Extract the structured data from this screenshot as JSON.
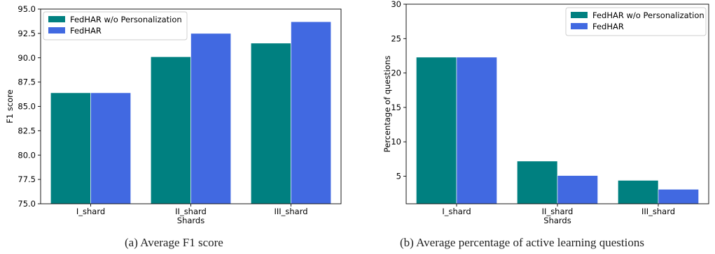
{
  "captions": {
    "a": "(a) Average F1 score",
    "b": "(b) Average percentage of active learning questions"
  },
  "colors": {
    "series_1": "#008080",
    "series_2": "#4169E1",
    "axis": "#000000"
  },
  "chart_data": [
    {
      "type": "bar",
      "title": "",
      "xlabel": "Shards",
      "ylabel": "F1 score",
      "categories": [
        "I_shard",
        "II_shard",
        "III_shard"
      ],
      "ylim": [
        75.0,
        95.0
      ],
      "yticks": [
        "75.0",
        "77.5",
        "80.0",
        "82.5",
        "85.0",
        "87.5",
        "90.0",
        "92.5",
        "95.0"
      ],
      "legend": "top-left",
      "series": [
        {
          "name": "FedHAR w/o Personalization",
          "values": [
            86.4,
            90.1,
            91.5
          ]
        },
        {
          "name": "FedHAR",
          "values": [
            86.4,
            92.5,
            93.7
          ]
        }
      ]
    },
    {
      "type": "bar",
      "title": "",
      "xlabel": "Shards",
      "ylabel": "Percentage of questions",
      "categories": [
        "I_shard",
        "II_shard",
        "III_shard"
      ],
      "ylim": [
        1.0,
        30.0
      ],
      "yticks": [
        "5",
        "10",
        "15",
        "20",
        "25",
        "30"
      ],
      "legend": "top-right",
      "series": [
        {
          "name": "FedHAR w/o Personalization",
          "values": [
            22.3,
            7.2,
            4.4
          ]
        },
        {
          "name": "FedHAR",
          "values": [
            22.3,
            5.1,
            3.1
          ]
        }
      ]
    }
  ]
}
